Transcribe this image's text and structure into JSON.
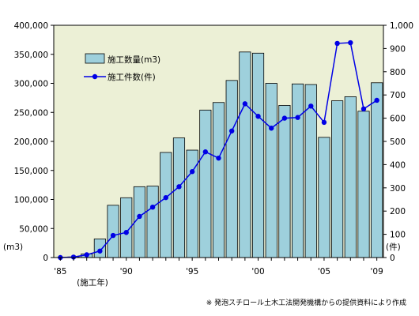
{
  "chart_data": {
    "type": "bar+line",
    "x": [
      1985,
      1986,
      1987,
      1988,
      1989,
      1990,
      1991,
      1992,
      1993,
      1994,
      1995,
      1996,
      1997,
      1998,
      1999,
      2000,
      2001,
      2002,
      2003,
      2004,
      2005,
      2006,
      2007,
      2008,
      2009
    ],
    "x_tick_labels": {
      "1985": "'85",
      "1990": "'90",
      "1995": "'95",
      "2000": "'00",
      "2005": "'05",
      "2009": "'09"
    },
    "series": [
      {
        "name": "施工数量(m3)",
        "type": "bar",
        "axis": "left",
        "color": "#9ed0dc",
        "values": [
          0,
          1000,
          6000,
          32000,
          90000,
          103000,
          122000,
          123000,
          181000,
          206000,
          185000,
          254000,
          267000,
          305000,
          354000,
          352000,
          300000,
          262000,
          299000,
          298000,
          207000,
          270000,
          277000,
          252000,
          301000
        ]
      },
      {
        "name": "施工件数(件)",
        "type": "line",
        "axis": "right",
        "color": "#0000e6",
        "values": [
          0,
          2,
          12,
          28,
          95,
          108,
          177,
          217,
          258,
          305,
          370,
          455,
          428,
          545,
          662,
          608,
          557,
          600,
          603,
          652,
          582,
          922,
          925,
          640,
          677
        ]
      }
    ],
    "y_left": {
      "min": 0,
      "max": 400000,
      "step": 50000,
      "unit_label": "(m3)"
    },
    "y_right": {
      "min": 0,
      "max": 1000,
      "step": 100,
      "unit_label": "(件)"
    },
    "xlabel": "(施工年)",
    "legend_position": "upper-left",
    "grid": false,
    "plot_background": "#ecf0d6",
    "source_note": "※ 発泡スチロール土木工法開発機構からの提供資料により作成"
  }
}
